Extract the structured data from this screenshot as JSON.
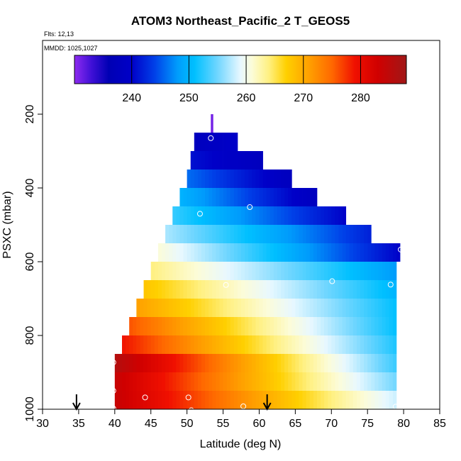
{
  "chart_data": {
    "type": "heatmap",
    "title": "ATOM3 Northeast_Pacific_2 T_GEOS5",
    "flights_label": "Flts: 12,13",
    "mmdd_label": "MMDD: 1025,1027",
    "xlabel": "Latitude (deg N)",
    "ylabel": "PSXC (mbar)",
    "xlim": [
      30,
      85
    ],
    "ylim": [
      1000,
      0
    ],
    "x_ticks": [
      30,
      35,
      40,
      45,
      50,
      55,
      60,
      65,
      70,
      75,
      80,
      85
    ],
    "y_ticks": [
      200,
      400,
      600,
      800,
      1000
    ],
    "grid": false,
    "colorbar": {
      "placement": "top",
      "range": [
        230,
        288
      ],
      "ticks": [
        240,
        250,
        260,
        270,
        280
      ],
      "stops": [
        {
          "value": 230,
          "color": "#8e2bf0"
        },
        {
          "value": 233,
          "color": "#3f10d6"
        },
        {
          "value": 236,
          "color": "#0000b4"
        },
        {
          "value": 240,
          "color": "#0000c8"
        },
        {
          "value": 244,
          "color": "#0040e8"
        },
        {
          "value": 248,
          "color": "#009cfc"
        },
        {
          "value": 251,
          "color": "#00c0ff"
        },
        {
          "value": 255,
          "color": "#70d6ff"
        },
        {
          "value": 259,
          "color": "#e8f8ff"
        },
        {
          "value": 261,
          "color": "#fcfcd8"
        },
        {
          "value": 264,
          "color": "#fff080"
        },
        {
          "value": 267,
          "color": "#ffd000"
        },
        {
          "value": 271,
          "color": "#ffa000"
        },
        {
          "value": 275,
          "color": "#ff6800"
        },
        {
          "value": 279,
          "color": "#f01000"
        },
        {
          "value": 283,
          "color": "#d00000"
        },
        {
          "value": 288,
          "color": "#a01818"
        }
      ]
    },
    "rows": [
      {
        "p_top": 200,
        "p_bottom": 250,
        "lat_min": 53.3,
        "lat_max": 53.6,
        "t_start": 231,
        "t_end": 231
      },
      {
        "p_top": 250,
        "p_bottom": 300,
        "lat_min": 51.0,
        "lat_max": 57.0,
        "t_start": 238,
        "t_end": 240
      },
      {
        "p_top": 300,
        "p_bottom": 350,
        "lat_min": 50.5,
        "lat_max": 60.5,
        "t_start": 241,
        "t_end": 238
      },
      {
        "p_top": 350,
        "p_bottom": 400,
        "lat_min": 50.0,
        "lat_max": 64.5,
        "t_start": 246,
        "t_end": 238
      },
      {
        "p_top": 400,
        "p_bottom": 450,
        "lat_min": 49.0,
        "lat_max": 68.0,
        "t_start": 250,
        "t_end": 238
      },
      {
        "p_top": 450,
        "p_bottom": 500,
        "lat_min": 48.0,
        "lat_max": 72.0,
        "t_start": 253,
        "t_end": 240
      },
      {
        "p_top": 500,
        "p_bottom": 550,
        "lat_min": 47.0,
        "lat_max": 75.5,
        "t_start": 257,
        "t_end": 242
      },
      {
        "p_top": 550,
        "p_bottom": 600,
        "lat_min": 46.0,
        "lat_max": 79.5,
        "t_start": 261,
        "t_end": 240
      },
      {
        "p_top": 600,
        "p_bottom": 650,
        "lat_min": 45.0,
        "lat_max": 79.0,
        "t_start": 264,
        "t_end": 248
      },
      {
        "p_top": 650,
        "p_bottom": 700,
        "lat_min": 44.0,
        "lat_max": 79.0,
        "t_start": 268,
        "t_end": 250
      },
      {
        "p_top": 700,
        "p_bottom": 750,
        "lat_min": 43.0,
        "lat_max": 79.0,
        "t_start": 271,
        "t_end": 251
      },
      {
        "p_top": 750,
        "p_bottom": 800,
        "lat_min": 42.0,
        "lat_max": 79.0,
        "t_start": 276,
        "t_end": 251
      },
      {
        "p_top": 800,
        "p_bottom": 850,
        "lat_min": 41.0,
        "lat_max": 79.0,
        "t_start": 279,
        "t_end": 252
      },
      {
        "p_top": 850,
        "p_bottom": 900,
        "lat_min": 40.0,
        "lat_max": 79.0,
        "t_start": 286,
        "t_end": 253
      },
      {
        "p_top": 900,
        "p_bottom": 950,
        "lat_min": 40.0,
        "lat_max": 79.0,
        "t_start": 284,
        "t_end": 255
      },
      {
        "p_top": 950,
        "p_bottom": 1000,
        "lat_min": 40.0,
        "lat_max": 79.0,
        "t_start": 284,
        "t_end": 258
      }
    ],
    "markers": [
      {
        "lat": 53.3,
        "p": 265
      },
      {
        "lat": 51.8,
        "p": 470
      },
      {
        "lat": 58.7,
        "p": 452
      },
      {
        "lat": 79.6,
        "p": 567
      },
      {
        "lat": 55.4,
        "p": 663
      },
      {
        "lat": 70.1,
        "p": 653
      },
      {
        "lat": 78.2,
        "p": 662
      },
      {
        "lat": 39.8,
        "p": 873
      },
      {
        "lat": 39.8,
        "p": 950
      },
      {
        "lat": 44.2,
        "p": 968
      },
      {
        "lat": 50.2,
        "p": 968
      },
      {
        "lat": 39.8,
        "p": 998
      },
      {
        "lat": 50.6,
        "p": 1003
      },
      {
        "lat": 57.8,
        "p": 992
      },
      {
        "lat": 78.9,
        "p": 993
      }
    ],
    "arrows": [
      {
        "lat": 34.7
      },
      {
        "lat": 61.1
      }
    ]
  }
}
